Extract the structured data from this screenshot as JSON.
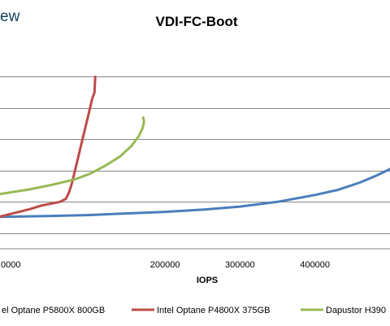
{
  "brand_fragment": "ew",
  "chart_data": {
    "type": "line",
    "title": "VDI-FC-Boot",
    "xlabel": "IOPS",
    "ylabel": "",
    "xlim": [
      -20000,
      500000
    ],
    "ylim": [
      -0.5,
      6.0
    ],
    "x_ticks": [
      {
        "value": 0,
        "label": "0000"
      },
      {
        "value": 200000,
        "label": "200000"
      },
      {
        "value": 300000,
        "label": "300000"
      },
      {
        "value": 400000,
        "label": "400000"
      }
    ],
    "y_gridlines": [
      0,
      1,
      2,
      3,
      4,
      5
    ],
    "grid": true,
    "legend_position": "bottom",
    "series": [
      {
        "name": "el Optane P5800X 800GB",
        "color": "#4a7ebb",
        "points": [
          [
            -20000,
            0.52
          ],
          [
            50000,
            0.55
          ],
          [
            100000,
            0.58
          ],
          [
            150000,
            0.63
          ],
          [
            200000,
            0.68
          ],
          [
            250000,
            0.75
          ],
          [
            300000,
            0.85
          ],
          [
            350000,
            1.0
          ],
          [
            400000,
            1.22
          ],
          [
            430000,
            1.38
          ],
          [
            460000,
            1.62
          ],
          [
            480000,
            1.82
          ],
          [
            500000,
            2.05
          ]
        ]
      },
      {
        "name": "Intel Optane P4800X 375GB",
        "color": "#be4b48",
        "points": [
          [
            -20000,
            0.53
          ],
          [
            0,
            0.65
          ],
          [
            20000,
            0.77
          ],
          [
            35000,
            0.88
          ],
          [
            50000,
            0.95
          ],
          [
            60000,
            1.0
          ],
          [
            68000,
            1.1
          ],
          [
            72000,
            1.3
          ],
          [
            76000,
            1.6
          ],
          [
            80000,
            2.0
          ],
          [
            85000,
            2.5
          ],
          [
            90000,
            3.0
          ],
          [
            95000,
            3.5
          ],
          [
            100000,
            4.0
          ],
          [
            103000,
            4.3
          ],
          [
            106000,
            4.5
          ],
          [
            107000,
            5.0
          ]
        ]
      },
      {
        "name": "Dapustor H390",
        "color": "#98b954",
        "points": [
          [
            -20000,
            1.25
          ],
          [
            20000,
            1.4
          ],
          [
            50000,
            1.55
          ],
          [
            80000,
            1.72
          ],
          [
            100000,
            1.9
          ],
          [
            120000,
            2.15
          ],
          [
            140000,
            2.45
          ],
          [
            155000,
            2.78
          ],
          [
            165000,
            3.1
          ],
          [
            170000,
            3.35
          ],
          [
            172000,
            3.55
          ],
          [
            171000,
            3.7
          ]
        ]
      }
    ]
  }
}
